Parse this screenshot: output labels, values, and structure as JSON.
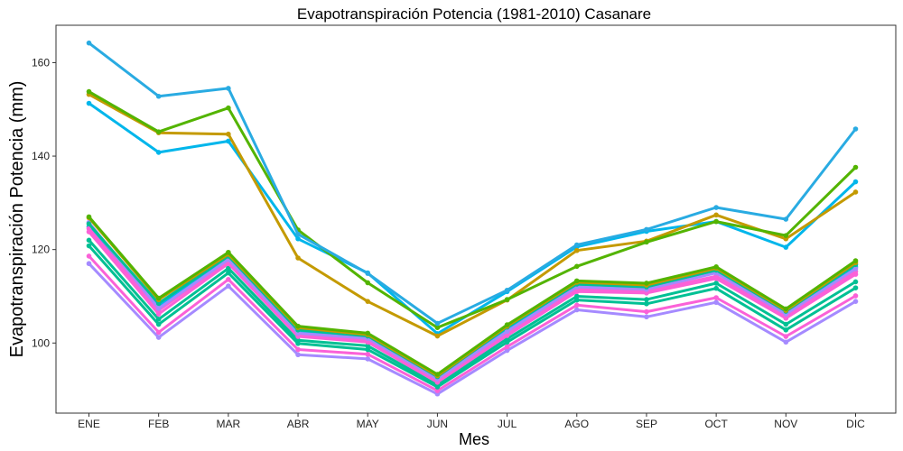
{
  "chart_data": {
    "type": "line",
    "title": "Evapotranspiración Potencia (1981-2010)  Casanare",
    "xlabel": "Mes",
    "ylabel": "Evapotranspiración Potencia  (mm)",
    "categories": [
      "ENE",
      "FEB",
      "MAR",
      "ABR",
      "MAY",
      "JUN",
      "JUL",
      "AGO",
      "SEP",
      "OCT",
      "NOV",
      "DIC"
    ],
    "ylim": [
      85,
      168
    ],
    "yticks": [
      100,
      120,
      140,
      160
    ],
    "ytick_labels": [
      "100",
      "120",
      "140",
      "160"
    ],
    "grid": false,
    "legend": "none",
    "series": [
      {
        "color": "#29ABE2",
        "values": [
          164.2,
          152.8,
          154.5,
          123.3,
          114.9,
          104.2,
          111.3,
          121.0,
          124.3,
          129.0,
          126.5,
          145.8
        ]
      },
      {
        "color": "#53B400",
        "values": [
          153.8,
          145.2,
          150.3,
          124.2,
          112.9,
          103.3,
          109.3,
          116.4,
          121.6,
          126.0,
          123.0,
          137.6
        ]
      },
      {
        "color": "#C49A00",
        "values": [
          153.2,
          145.0,
          144.7,
          118.2,
          108.9,
          101.5,
          109.2,
          119.8,
          121.8,
          127.4,
          122.3,
          132.3
        ]
      },
      {
        "color": "#00B6EB",
        "values": [
          151.3,
          140.8,
          143.2,
          122.3,
          115.0,
          102.0,
          111.0,
          120.6,
          123.9,
          126.0,
          120.5,
          134.5
        ]
      },
      {
        "color": "#53B400",
        "values": [
          127.0,
          109.6,
          119.4,
          103.6,
          102.1,
          93.3,
          103.9,
          113.3,
          112.8,
          116.3,
          107.3,
          117.6
        ]
      },
      {
        "color": "#C49A00",
        "values": [
          126.8,
          109.3,
          119.0,
          103.3,
          101.8,
          93.0,
          103.6,
          113.0,
          112.4,
          116.0,
          107.0,
          117.2
        ]
      },
      {
        "color": "#00C094",
        "values": [
          125.5,
          108.5,
          118.6,
          102.8,
          101.5,
          92.8,
          103.4,
          112.6,
          112.0,
          115.6,
          106.8,
          116.8
        ]
      },
      {
        "color": "#A58AFF",
        "values": [
          125.8,
          107.4,
          117.9,
          102.1,
          101.0,
          92.3,
          102.5,
          112.0,
          111.5,
          115.0,
          106.2,
          115.9
        ]
      },
      {
        "color": "#FB61D7",
        "values": [
          124.5,
          107.0,
          117.5,
          101.9,
          100.6,
          92.0,
          102.1,
          111.5,
          111.1,
          114.3,
          105.8,
          115.3
        ]
      },
      {
        "color": "#FB61D7",
        "values": [
          123.8,
          106.2,
          117.0,
          101.4,
          100.2,
          91.6,
          101.6,
          111.0,
          110.7,
          113.8,
          105.3,
          114.7
        ]
      },
      {
        "color": "#00B6EB",
        "values": [
          124.9,
          108.0,
          118.1,
          102.4,
          101.2,
          92.5,
          102.9,
          112.3,
          111.8,
          115.3,
          106.5,
          116.3
        ]
      },
      {
        "color": "#00C094",
        "values": [
          122.0,
          105.1,
          116.0,
          100.6,
          99.4,
          91.1,
          100.9,
          110.0,
          109.3,
          112.8,
          104.0,
          113.1
        ]
      },
      {
        "color": "#00C094",
        "values": [
          120.8,
          104.0,
          115.0,
          99.9,
          98.6,
          90.6,
          100.2,
          109.2,
          108.4,
          111.7,
          102.8,
          111.8
        ]
      },
      {
        "color": "#FB61D7",
        "values": [
          118.6,
          102.3,
          113.6,
          98.6,
          97.6,
          89.8,
          99.2,
          108.1,
          106.7,
          109.7,
          101.4,
          110.1
        ]
      },
      {
        "color": "#A58AFF",
        "values": [
          117.0,
          101.2,
          112.2,
          97.5,
          96.6,
          89.1,
          98.4,
          107.1,
          105.6,
          108.7,
          100.2,
          108.9
        ]
      }
    ]
  }
}
